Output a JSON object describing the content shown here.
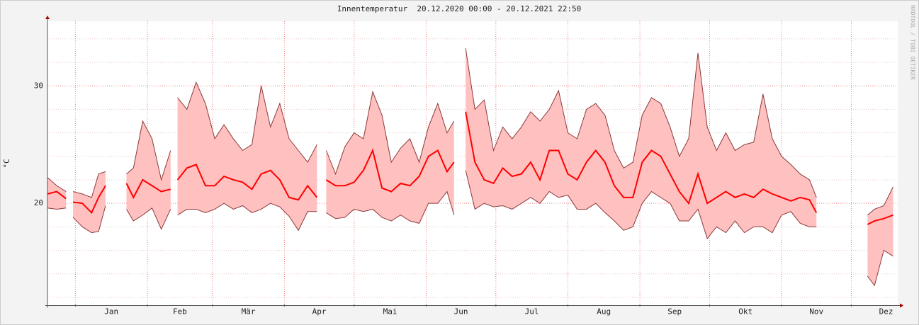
{
  "chart_data": {
    "type": "range-line",
    "title": "Innentemperatur  20.12.2020 00:00 - 20.12.2021 22:50",
    "ylabel": "°C",
    "watermark": "RRDTOOL / TOBI OETIKER",
    "xlim": [
      0,
      366
    ],
    "xticks": [
      {
        "value": 12,
        "label": "Jan"
      },
      {
        "value": 43,
        "label": "Feb"
      },
      {
        "value": 71,
        "label": "Mär"
      },
      {
        "value": 102,
        "label": "Apr"
      },
      {
        "value": 132,
        "label": "Mai"
      },
      {
        "value": 163,
        "label": "Jun"
      },
      {
        "value": 193,
        "label": "Jul"
      },
      {
        "value": 224,
        "label": "Aug"
      },
      {
        "value": 255,
        "label": "Sep"
      },
      {
        "value": 285,
        "label": "Okt"
      },
      {
        "value": 316,
        "label": "Nov"
      },
      {
        "value": 346,
        "label": "Dez"
      }
    ],
    "ylim": [
      11.3,
      35.5
    ],
    "yticks": [
      20,
      30
    ],
    "yminor": [
      12,
      14,
      16,
      18,
      22,
      24,
      26,
      28,
      32,
      34
    ],
    "grid": true,
    "x": [
      0,
      4,
      8,
      9.5,
      11,
      15,
      19,
      22,
      25,
      30,
      34,
      37,
      41,
      45,
      49,
      53,
      54.5,
      56,
      60,
      64,
      68,
      72,
      76,
      80,
      84,
      88,
      92,
      96,
      100,
      104,
      108,
      112,
      116,
      118,
      120,
      124,
      128,
      132,
      136,
      140,
      144,
      148,
      152,
      156,
      160,
      164,
      168,
      172,
      175,
      177.5,
      180,
      184,
      188,
      192,
      196,
      200,
      204,
      208,
      212,
      216,
      220,
      224,
      228,
      232,
      236,
      240,
      244,
      248,
      252,
      256,
      260,
      264,
      268,
      272,
      276,
      280,
      284,
      288,
      292,
      296,
      300,
      304,
      308,
      312,
      316,
      320,
      324,
      328,
      331,
      342,
      353,
      356,
      360,
      364
    ],
    "series": [
      {
        "role": "max",
        "color": "#8b3a3a",
        "fill": "#ffc0c0",
        "values": [
          22.2,
          21.5,
          21.0,
          null,
          21.0,
          20.8,
          20.5,
          22.5,
          22.7,
          null,
          22.5,
          23,
          27,
          25.5,
          22,
          24.5,
          null,
          29,
          28,
          30.3,
          28.5,
          25.5,
          26.7,
          25.5,
          24.5,
          25,
          30,
          26.5,
          28.5,
          25.5,
          24.5,
          23.5,
          25,
          null,
          24.5,
          22.5,
          24.8,
          26,
          25.5,
          29.5,
          27.5,
          23.5,
          24.7,
          25.5,
          23.5,
          26.5,
          28.5,
          26,
          27,
          null,
          33.2,
          28,
          28.8,
          24.5,
          26.5,
          25.5,
          26.5,
          27.8,
          27,
          28,
          29.6,
          26,
          25.5,
          28,
          28.5,
          27.5,
          24.5,
          23,
          23.5,
          27.5,
          29,
          28.5,
          26.5,
          24,
          25.5,
          32.8,
          26.5,
          24.5,
          26,
          24.5,
          25,
          25.2,
          29.3,
          25.5,
          24,
          23.3,
          22.5,
          22,
          20.5,
          null,
          19,
          19.5,
          19.8,
          21.4
        ]
      },
      {
        "role": "min",
        "color": "#8b3a3a",
        "fill": "#ffc0c0",
        "values": [
          19.6,
          19.5,
          19.6,
          null,
          18.8,
          18.0,
          17.5,
          17.6,
          19.8,
          null,
          19.5,
          18.5,
          19,
          19.6,
          17.8,
          19.5,
          null,
          19,
          19.5,
          19.5,
          19.2,
          19.5,
          20,
          19.5,
          19.8,
          19.2,
          19.5,
          20,
          19.7,
          18.9,
          17.7,
          19.3,
          19.3,
          null,
          19.2,
          18.7,
          18.8,
          19.5,
          19.3,
          19.5,
          18.8,
          18.5,
          19,
          18.5,
          18.3,
          20,
          20,
          21,
          19,
          null,
          22.8,
          19.5,
          20,
          19.7,
          19.8,
          19.5,
          20,
          20.5,
          20,
          21,
          20.5,
          20.7,
          19.5,
          19.5,
          20,
          19.2,
          18.5,
          17.7,
          18,
          20,
          21,
          20.5,
          20,
          18.5,
          18.5,
          19.5,
          17,
          18,
          17.5,
          18.5,
          17.5,
          18,
          18,
          17.5,
          19,
          19.3,
          18.3,
          18,
          18,
          null,
          13.8,
          13,
          16,
          15.5
        ]
      },
      {
        "role": "avg",
        "color": "#ff0000",
        "values": [
          20.8,
          21.0,
          20.4,
          null,
          20.1,
          20.0,
          19.2,
          20.5,
          21.5,
          null,
          21.7,
          20.5,
          22,
          21.5,
          21,
          21.2,
          null,
          22,
          23,
          23.3,
          21.5,
          21.5,
          22.3,
          22,
          21.8,
          21.2,
          22.5,
          22.8,
          22,
          20.5,
          20.3,
          21.5,
          20.5,
          null,
          22,
          21.5,
          21.5,
          21.8,
          22.8,
          24.5,
          21.3,
          21,
          21.7,
          21.5,
          22.3,
          24,
          24.5,
          22.7,
          23.5,
          null,
          27.8,
          23.5,
          22,
          21.7,
          23,
          22.3,
          22.5,
          23.5,
          22,
          24.5,
          24.5,
          22.5,
          22,
          23.5,
          24.5,
          23.5,
          21.5,
          20.5,
          20.5,
          23.5,
          24.5,
          24,
          22.5,
          21,
          20,
          22.5,
          20,
          20.5,
          21,
          20.5,
          20.8,
          20.5,
          21.2,
          20.8,
          20.5,
          20.2,
          20.5,
          20.3,
          19.2,
          null,
          18.2,
          18.5,
          18.7,
          19
        ]
      }
    ]
  }
}
